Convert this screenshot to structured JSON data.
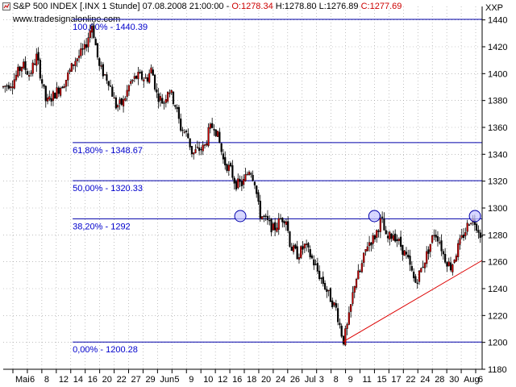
{
  "header": {
    "instrument": "S&P 500 INDEX [.INX",
    "interval": "1 Stunde]",
    "datetime": "07.08.2008 21:00:00",
    "open_label": "O:1278.34",
    "high_label": "H:1278.80",
    "low_label": "L:1276.89",
    "close_label": "C:1277.69",
    "symbol_right": "XXP"
  },
  "watermark": "www.tradesignalonline.com",
  "chart_data": {
    "type": "candlestick",
    "ylim": [
      1180,
      1450
    ],
    "y_ticks": [
      "1180",
      "1200",
      "1220",
      "1240",
      "1260",
      "1280",
      "1300",
      "1320",
      "1340",
      "1360",
      "1380",
      "1400",
      "1420",
      "1440"
    ],
    "x_tick_labels": [
      "Mai",
      "6",
      "8",
      "12",
      "14",
      "16",
      "20",
      "22",
      "27",
      "29",
      "Jun",
      "5",
      "9",
      "10",
      "12",
      "16",
      "18",
      "20",
      "24",
      "26",
      "Jul",
      "3",
      "8",
      "9",
      "11",
      "15",
      "17",
      "22",
      "24",
      "28",
      "30",
      "Aug",
      "6"
    ],
    "fibonacci_levels": [
      {
        "label": "100,00% - 1440.39",
        "value": 1440.39
      },
      {
        "label": "61,80% - 1348.67",
        "value": 1348.67
      },
      {
        "label": "50,00% - 1320.33",
        "value": 1320.33
      },
      {
        "label": "38,20% - 1292",
        "value": 1292
      },
      {
        "label": "0,00% - 1200.28",
        "value": 1200.28
      }
    ],
    "trendline": {
      "from": [
        0.71,
        1200.5
      ],
      "to": [
        1.0,
        1261
      ]
    },
    "circled_highs": [
      {
        "xfrac": 0.495,
        "y": 1294
      },
      {
        "xfrac": 0.775,
        "y": 1294
      },
      {
        "xfrac": 0.985,
        "y": 1294
      }
    ],
    "price_path": [
      [
        0.0,
        1390
      ],
      [
        0.02,
        1394
      ],
      [
        0.04,
        1407
      ],
      [
        0.055,
        1399
      ],
      [
        0.07,
        1413
      ],
      [
        0.09,
        1378
      ],
      [
        0.11,
        1386
      ],
      [
        0.13,
        1395
      ],
      [
        0.15,
        1410
      ],
      [
        0.17,
        1418
      ],
      [
        0.185,
        1437
      ],
      [
        0.19,
        1428
      ],
      [
        0.2,
        1405
      ],
      [
        0.22,
        1395
      ],
      [
        0.235,
        1376
      ],
      [
        0.25,
        1378
      ],
      [
        0.265,
        1393
      ],
      [
        0.28,
        1398
      ],
      [
        0.3,
        1396
      ],
      [
        0.31,
        1404
      ],
      [
        0.32,
        1385
      ],
      [
        0.335,
        1378
      ],
      [
        0.345,
        1390
      ],
      [
        0.36,
        1376
      ],
      [
        0.37,
        1360
      ],
      [
        0.385,
        1354
      ],
      [
        0.395,
        1340
      ],
      [
        0.405,
        1343
      ],
      [
        0.42,
        1345
      ],
      [
        0.43,
        1358
      ],
      [
        0.44,
        1362
      ],
      [
        0.45,
        1351
      ],
      [
        0.46,
        1335
      ],
      [
        0.475,
        1328
      ],
      [
        0.485,
        1318
      ],
      [
        0.5,
        1318
      ],
      [
        0.515,
        1330
      ],
      [
        0.525,
        1320
      ],
      [
        0.535,
        1296
      ],
      [
        0.55,
        1290
      ],
      [
        0.565,
        1284
      ],
      [
        0.58,
        1292
      ],
      [
        0.59,
        1293
      ],
      [
        0.6,
        1271
      ],
      [
        0.615,
        1265
      ],
      [
        0.63,
        1272
      ],
      [
        0.645,
        1262
      ],
      [
        0.66,
        1250
      ],
      [
        0.67,
        1243
      ],
      [
        0.68,
        1235
      ],
      [
        0.695,
        1225
      ],
      [
        0.71,
        1201
      ],
      [
        0.72,
        1214
      ],
      [
        0.735,
        1247
      ],
      [
        0.745,
        1252
      ],
      [
        0.76,
        1273
      ],
      [
        0.775,
        1278
      ],
      [
        0.79,
        1292
      ],
      [
        0.8,
        1276
      ],
      [
        0.815,
        1281
      ],
      [
        0.83,
        1272
      ],
      [
        0.845,
        1261
      ],
      [
        0.86,
        1244
      ],
      [
        0.87,
        1252
      ],
      [
        0.885,
        1266
      ],
      [
        0.9,
        1282
      ],
      [
        0.91,
        1277
      ],
      [
        0.92,
        1264
      ],
      [
        0.935,
        1256
      ],
      [
        0.95,
        1271
      ],
      [
        0.965,
        1283
      ],
      [
        0.975,
        1292
      ],
      [
        0.985,
        1290
      ],
      [
        1.0,
        1278
      ]
    ],
    "colors": {
      "up": "#cc0000",
      "down": "#000000",
      "fib": "#0000aa",
      "fib_text": "#0000cc",
      "trend": "#dd0000",
      "circle_fill": "#c8c8ff",
      "circle_stroke": "#0000aa",
      "grid": "#999999"
    }
  }
}
